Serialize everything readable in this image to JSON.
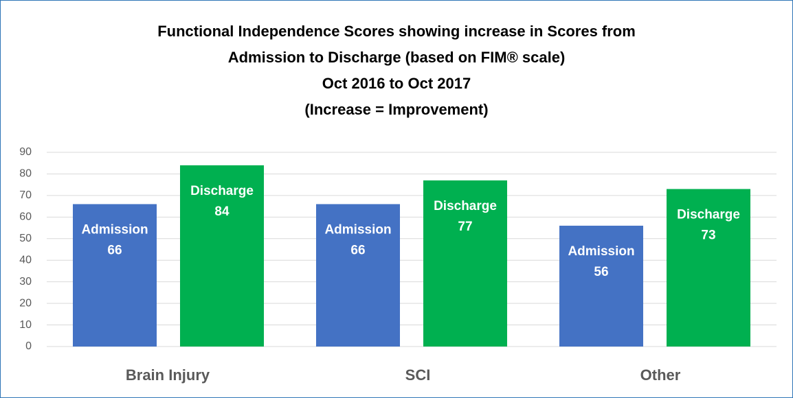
{
  "chart_data": {
    "type": "bar",
    "title": [
      "Functional Independence Scores showing increase in Scores from",
      "Admission to Discharge (based on FIM® scale)",
      "Oct 2016 to Oct 2017",
      "(Increase = Improvement)"
    ],
    "categories": [
      "Brain Injury",
      "SCI",
      "Other"
    ],
    "series": [
      {
        "name": "Admission",
        "color": "#4472c4",
        "values": [
          66,
          66,
          56
        ]
      },
      {
        "name": "Discharge",
        "color": "#00b050",
        "values": [
          84,
          77,
          73
        ]
      }
    ],
    "ylim": [
      0,
      90
    ],
    "yticks": [
      0,
      10,
      20,
      30,
      40,
      50,
      60,
      70,
      80,
      90
    ],
    "grid": true
  }
}
